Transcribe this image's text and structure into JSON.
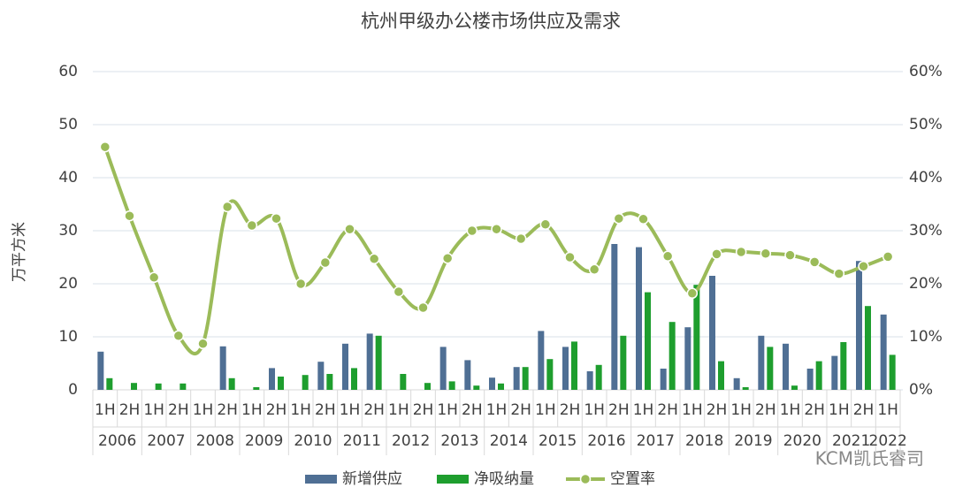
{
  "chart_data": {
    "type": "bar-line",
    "title": "杭州甲级办公楼市场供应及需求",
    "y_label": "万平方米",
    "watermark": "KCM凯氏睿司",
    "categories": [
      "1H",
      "2H",
      "1H",
      "2H",
      "1H",
      "2H",
      "1H",
      "2H",
      "1H",
      "2H",
      "1H",
      "2H",
      "1H",
      "2H",
      "1H",
      "2H",
      "1H",
      "2H",
      "1H",
      "2H",
      "1H",
      "2H",
      "1H",
      "2H",
      "1H",
      "2H",
      "1H",
      "2H",
      "1H",
      "2H",
      "1H",
      "2H",
      "1H"
    ],
    "years": [
      "2006",
      "2007",
      "2008",
      "2009",
      "2010",
      "2011",
      "2012",
      "2013",
      "2014",
      "2015",
      "2016",
      "2017",
      "2018",
      "2019",
      "2020",
      "2021",
      "2022"
    ],
    "series": [
      {
        "name": "新增供应",
        "type": "bar",
        "color": "#4f6f94",
        "values": [
          7.2,
          0,
          0,
          0,
          0,
          8.2,
          0,
          4.1,
          0,
          5.3,
          8.7,
          10.6,
          0,
          0,
          8.1,
          5.6,
          2.3,
          4.3,
          11.1,
          8.1,
          3.5,
          27.5,
          26.9,
          4.0,
          11.8,
          21.5,
          2.2,
          10.2,
          8.7,
          4.0,
          6.4,
          24.3,
          14.2
        ]
      },
      {
        "name": "净吸纳量",
        "type": "bar",
        "color": "#1e9e2e",
        "values": [
          2.2,
          1.3,
          1.2,
          1.2,
          0,
          2.2,
          0.5,
          2.5,
          2.8,
          3.0,
          4.1,
          10.2,
          3.0,
          1.3,
          1.6,
          0.8,
          1.2,
          4.3,
          5.8,
          9.1,
          4.7,
          10.2,
          18.4,
          12.8,
          19.8,
          5.4,
          0.5,
          8.1,
          0.8,
          5.4,
          9.0,
          15.8,
          6.6
        ]
      },
      {
        "name": "空置率",
        "type": "line",
        "axis": "y2",
        "color": "#9bbb59",
        "values": [
          45.8,
          32.8,
          21.2,
          10.2,
          8.7,
          34.5,
          31.0,
          32.3,
          20.0,
          24.0,
          30.3,
          24.7,
          18.5,
          15.5,
          24.8,
          30.0,
          30.3,
          28.5,
          31.2,
          25.0,
          22.7,
          32.3,
          32.2,
          25.2,
          18.2,
          25.6,
          26.0,
          25.7,
          25.4,
          24.1,
          21.9,
          23.3,
          25.1
        ]
      }
    ],
    "ylim": [
      0,
      60
    ],
    "yticks": [
      0,
      10,
      20,
      30,
      40,
      50,
      60
    ],
    "y2lim": [
      0,
      60
    ],
    "y2ticks": [
      {
        "value": 0,
        "label": "0%"
      },
      {
        "value": 10,
        "label": "10%"
      },
      {
        "value": 20,
        "label": "20%"
      },
      {
        "value": 30,
        "label": "30%"
      },
      {
        "value": 40,
        "label": "40%"
      },
      {
        "value": 50,
        "label": "50%"
      },
      {
        "value": 60,
        "label": "60%"
      }
    ],
    "grid": true,
    "legend": "bottom"
  }
}
